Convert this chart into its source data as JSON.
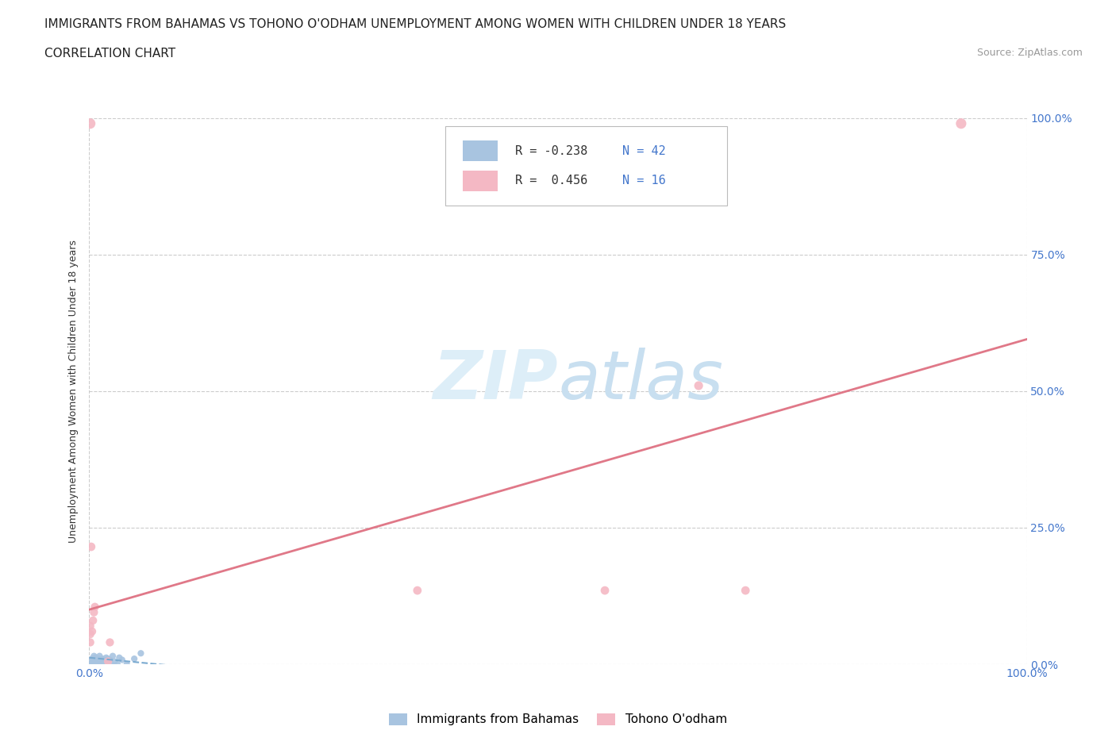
{
  "title": "IMMIGRANTS FROM BAHAMAS VS TOHONO O'ODHAM UNEMPLOYMENT AMONG WOMEN WITH CHILDREN UNDER 18 YEARS",
  "subtitle": "CORRELATION CHART",
  "source": "Source: ZipAtlas.com",
  "ylabel": "Unemployment Among Women with Children Under 18 years",
  "xlim": [
    0,
    1.0
  ],
  "ylim": [
    0,
    1.0
  ],
  "ytick_positions": [
    0.0,
    0.25,
    0.5,
    0.75,
    1.0
  ],
  "ytick_labels": [
    "0.0%",
    "25.0%",
    "50.0%",
    "75.0%",
    "100.0%"
  ],
  "xtick_positions": [
    0.0,
    1.0
  ],
  "xtick_labels": [
    "0.0%",
    "100.0%"
  ],
  "blue_label": "Immigrants from Bahamas",
  "pink_label": "Tohono O'odham",
  "blue_R": -0.238,
  "blue_N": 42,
  "pink_R": 0.456,
  "pink_N": 16,
  "blue_color": "#a8c4e0",
  "pink_color": "#f4b8c4",
  "blue_trend_color": "#7aaad0",
  "pink_trend_color": "#e07888",
  "tick_color": "#4477cc",
  "watermark_color": "#ddeef8",
  "title_fontsize": 11,
  "subtitle_fontsize": 11,
  "source_fontsize": 9,
  "axis_label_fontsize": 9,
  "tick_fontsize": 10,
  "legend_fontsize": 11,
  "blue_scatter_x": [
    0.002,
    0.002,
    0.002,
    0.003,
    0.003,
    0.003,
    0.003,
    0.004,
    0.004,
    0.005,
    0.005,
    0.005,
    0.006,
    0.006,
    0.007,
    0.007,
    0.008,
    0.008,
    0.009,
    0.009,
    0.01,
    0.01,
    0.011,
    0.011,
    0.012,
    0.013,
    0.014,
    0.015,
    0.016,
    0.018,
    0.019,
    0.02,
    0.022,
    0.024,
    0.025,
    0.027,
    0.03,
    0.032,
    0.035,
    0.04,
    0.048,
    0.055
  ],
  "blue_scatter_y": [
    0.0,
    0.0,
    0.0,
    0.0,
    0.0,
    0.005,
    0.01,
    0.0,
    0.008,
    0.0,
    0.005,
    0.015,
    0.0,
    0.01,
    0.0,
    0.012,
    0.0,
    0.01,
    0.0,
    0.008,
    0.0,
    0.01,
    0.0,
    0.015,
    0.005,
    0.0,
    0.01,
    0.008,
    0.0,
    0.012,
    0.0,
    0.01,
    0.008,
    0.0,
    0.015,
    0.005,
    0.0,
    0.012,
    0.008,
    0.0,
    0.01,
    0.02
  ],
  "blue_scatter_s": [
    35,
    35,
    35,
    45,
    45,
    35,
    35,
    35,
    35,
    35,
    35,
    35,
    35,
    35,
    35,
    35,
    35,
    35,
    35,
    35,
    35,
    35,
    35,
    35,
    35,
    35,
    35,
    35,
    35,
    35,
    35,
    35,
    35,
    35,
    35,
    35,
    35,
    35,
    35,
    35,
    35,
    35
  ],
  "pink_scatter_x": [
    0.001,
    0.002,
    0.003,
    0.004,
    0.005,
    0.006,
    0.02,
    0.022,
    0.35,
    0.55,
    0.65,
    0.7,
    0.001,
    0.001,
    0.001,
    0.93
  ],
  "pink_scatter_y": [
    0.99,
    0.215,
    0.06,
    0.08,
    0.095,
    0.105,
    0.005,
    0.04,
    0.135,
    0.135,
    0.51,
    0.135,
    0.04,
    0.055,
    0.07,
    0.99
  ],
  "pink_scatter_s": [
    90,
    60,
    55,
    55,
    55,
    55,
    55,
    55,
    60,
    60,
    65,
    60,
    55,
    55,
    55,
    90
  ],
  "blue_trend_x": [
    0.0,
    0.085
  ],
  "blue_trend_y": [
    0.012,
    -0.002
  ],
  "pink_trend_x": [
    0.0,
    1.0
  ],
  "pink_trend_y": [
    0.1,
    0.595
  ]
}
